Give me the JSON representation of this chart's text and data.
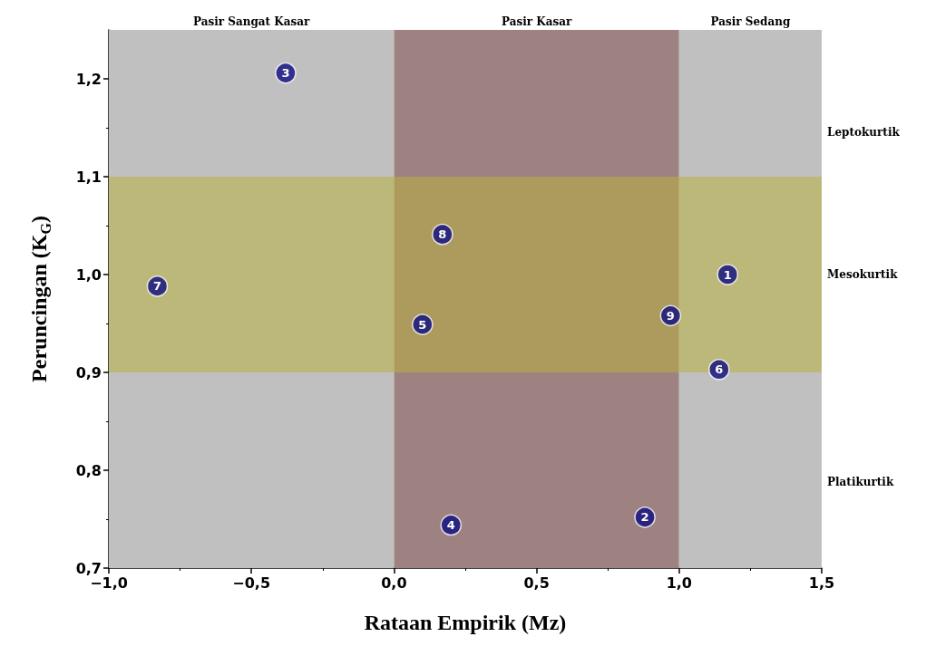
{
  "chart_data": {
    "type": "scatter",
    "xlabel": "Rataan Empirik (Mz)",
    "ylabel": "Peruncingan (K$_{G}$)",
    "x": [
      1.17,
      0.88,
      -0.38,
      0.2,
      0.1,
      1.14,
      -0.83,
      0.17,
      0.97
    ],
    "series": [
      {
        "color": "#0c0c80",
        "values": [
          1.0,
          0.752,
          1.206,
          0.744,
          0.949,
          0.903,
          0.988,
          1.041,
          0.958
        ]
      }
    ],
    "marker": "circle",
    "xlim": [
      -1.0,
      1.5
    ],
    "ylim": [
      0.7,
      1.25
    ],
    "xticks": [
      {
        "value": -1.0,
        "label": "−1,0"
      },
      {
        "value": -0.5,
        "label": "−0,5"
      },
      {
        "value": 0,
        "label": "0,0"
      },
      {
        "value": 0.5,
        "label": "0,5"
      },
      {
        "value": 1.0,
        "label": "1,0"
      },
      {
        "value": 1.5,
        "label": "1,5"
      }
    ],
    "yticks": [
      {
        "value": 0.7,
        "label": "0,7"
      },
      {
        "value": 0.8,
        "label": "0,8"
      },
      {
        "value": 0.9,
        "label": "0,9"
      },
      {
        "value": 1.0,
        "label": "1,0"
      },
      {
        "value": 1.1,
        "label": "1,1"
      },
      {
        "value": 1.2,
        "label": "1,2"
      }
    ],
    "bands": [
      {
        "axis": "x",
        "from": -1.0,
        "to": 0,
        "label": "Pasir Sangat Kasar",
        "color": "#c0c0c0"
      },
      {
        "axis": "x",
        "from": 0,
        "to": 1.0,
        "label": "Pasir Kasar",
        "color": "#9e8282"
      },
      {
        "axis": "x",
        "from": 1.0,
        "to": 1.5,
        "label": "Pasir Sedang",
        "color": "#c0c0c0"
      },
      {
        "axis": "y",
        "from": 0.9,
        "to": 1.1,
        "label": "Mesokurtik",
        "color": "#b8b040"
      }
    ],
    "annotations": [
      {
        "text": "1",
        "x": 1.17,
        "y": 1.0
      },
      {
        "text": "2",
        "x": 0.88,
        "y": 0.752
      },
      {
        "text": "3",
        "x": -0.38,
        "y": 1.206
      },
      {
        "text": "4",
        "x": 0.2,
        "y": 0.744
      },
      {
        "text": "5",
        "x": 0.1,
        "y": 0.949
      },
      {
        "text": "6",
        "x": 1.14,
        "y": 0.903
      },
      {
        "text": "7",
        "x": -0.83,
        "y": 0.988
      },
      {
        "text": "8",
        "x": 0.17,
        "y": 1.041
      },
      {
        "text": "9",
        "x": 0.97,
        "y": 0.958
      },
      "Leptokurtik",
      "Platikurtik"
    ],
    "grid": false
  }
}
